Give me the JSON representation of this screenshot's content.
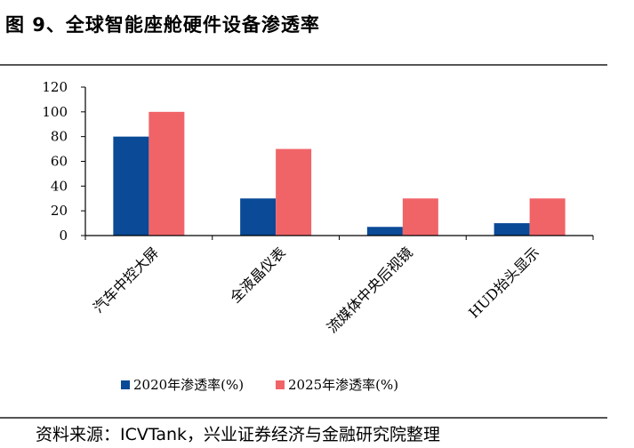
{
  "title": "图 9、全球智能座舱硬件设备渗透率",
  "source": "资料来源：ICVTank，兴业证券经济与金融研究院整理",
  "chart_data": {
    "type": "bar",
    "categories": [
      "汽车中控大屏",
      "全液晶仪表",
      "流媒体中央后视镜",
      "HUD抬头显示"
    ],
    "series": [
      {
        "name": "2020年渗透率(%)",
        "values": [
          80,
          30,
          7,
          10
        ],
        "color": "#0a4a96"
      },
      {
        "name": "2025年渗透率(%)",
        "values": [
          100,
          70,
          30,
          30
        ],
        "color": "#f06468"
      }
    ],
    "yticks": [
      0,
      20,
      40,
      60,
      80,
      100,
      120
    ],
    "ylim": [
      0,
      120
    ],
    "legend_position": "bottom-center"
  }
}
